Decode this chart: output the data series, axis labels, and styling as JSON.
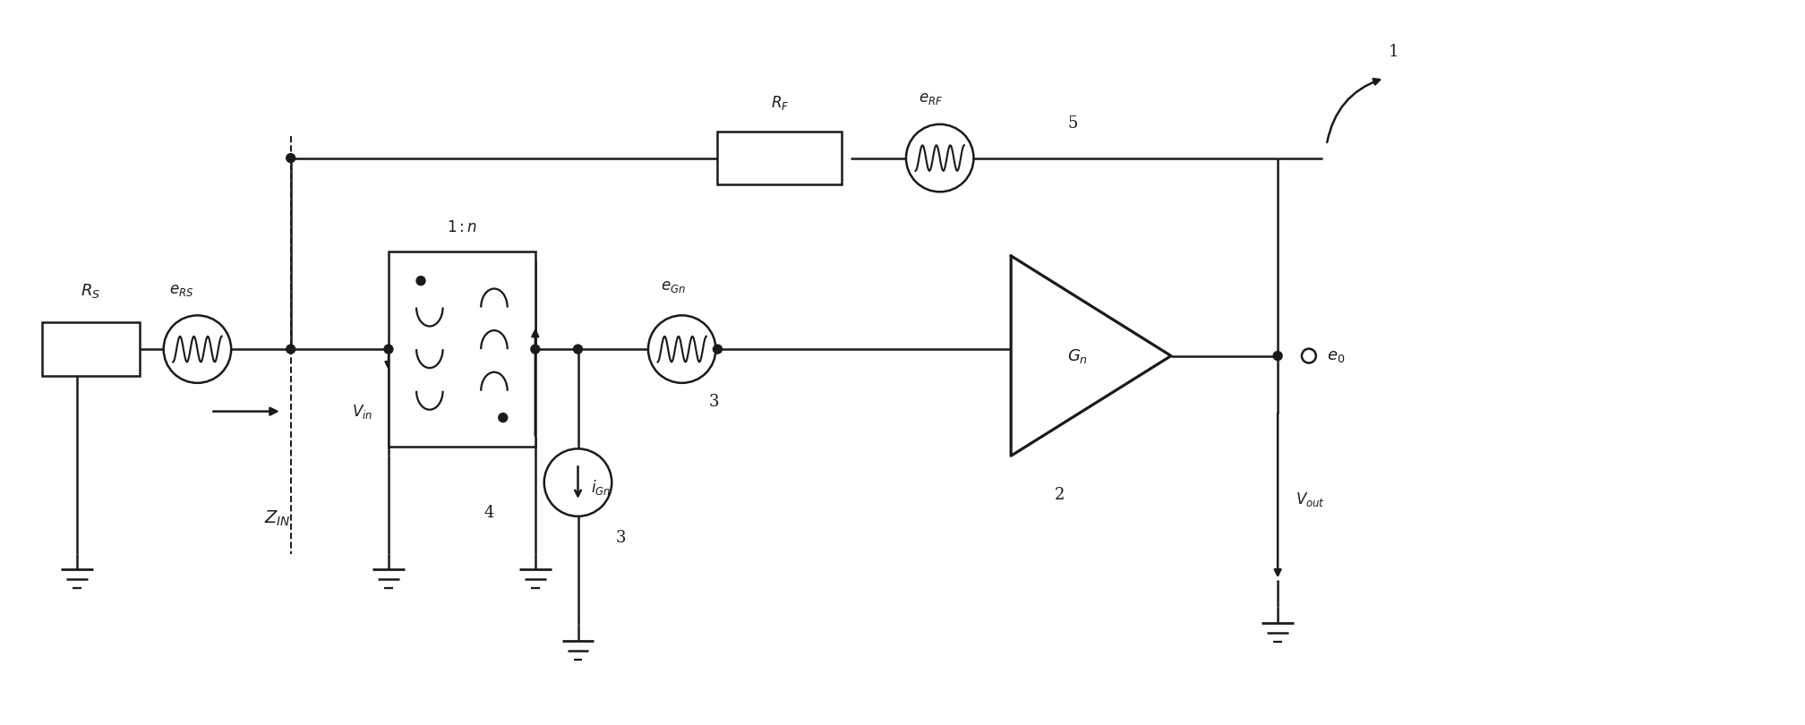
{
  "bg_color": "#ffffff",
  "line_color": "#1a1a1a",
  "line_width": 1.8,
  "fig_width": 20.16,
  "fig_height": 8.1
}
